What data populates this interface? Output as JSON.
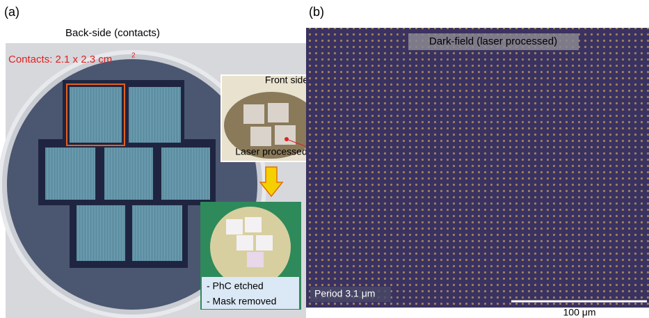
{
  "panel_a": {
    "label": "(a)",
    "caption": "Back-side (contacts)",
    "contacts": "Contacts: 2.1 x 2.3 cm",
    "contacts_exponent": "2",
    "front_side": "Front side",
    "laser_processed": "Laser processed",
    "steps": [
      "- PhC etched",
      "- Mask removed"
    ]
  },
  "panel_b": {
    "label": "(b)",
    "caption": "Dark-field (laser processed)",
    "period": "Period 3.1 μm",
    "scale_bar": "100 μm"
  }
}
